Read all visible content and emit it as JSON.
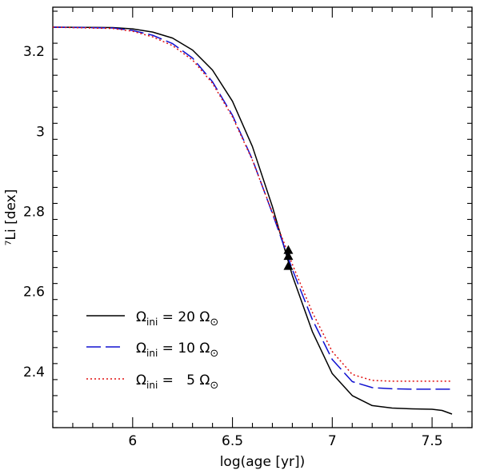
{
  "chart_data": {
    "type": "line",
    "xlabel": "log(age [yr])",
    "ylabel": "⁷Li [dex]",
    "xlim": [
      5.6,
      7.7
    ],
    "ylim": [
      2.26,
      3.31
    ],
    "xticks": [
      6,
      6.5,
      7,
      7.5
    ],
    "yticks": [
      2.4,
      2.6,
      2.8,
      3,
      3.2
    ],
    "x_tick_labels": [
      "6",
      "6.5",
      "7",
      "7.5"
    ],
    "y_tick_labels": [
      "2.4",
      "2.6",
      "2.8",
      "3",
      "3.2"
    ],
    "legend_position": "lower-left",
    "series": [
      {
        "name": "Ωini = 20 Ω⊙",
        "legend": {
          "symbol": "Ω",
          "sub": "ini",
          "eq": "=",
          "num": "20",
          "unit": "Ω",
          "unit_sub": "⊙"
        },
        "color": "#000000",
        "dash": "",
        "x": [
          5.6,
          5.9,
          6.0,
          6.1,
          6.2,
          6.3,
          6.4,
          6.5,
          6.6,
          6.7,
          6.8,
          6.9,
          7.0,
          7.1,
          7.2,
          7.3,
          7.4,
          7.5,
          7.55,
          7.6
        ],
        "y": [
          3.26,
          3.259,
          3.256,
          3.248,
          3.233,
          3.203,
          3.153,
          3.075,
          2.962,
          2.812,
          2.64,
          2.5,
          2.395,
          2.34,
          2.315,
          2.309,
          2.307,
          2.306,
          2.303,
          2.294
        ]
      },
      {
        "name": "Ωini = 10 Ω⊙",
        "legend": {
          "symbol": "Ω",
          "sub": "ini",
          "eq": "=",
          "num": "10",
          "unit": "Ω",
          "unit_sub": "⊙"
        },
        "color": "#1010d0",
        "dash": "18 6",
        "x": [
          5.6,
          5.9,
          6.0,
          6.1,
          6.2,
          6.3,
          6.4,
          6.5,
          6.6,
          6.7,
          6.8,
          6.9,
          7.0,
          7.1,
          7.2,
          7.3,
          7.4,
          7.5,
          7.6
        ],
        "y": [
          3.26,
          3.258,
          3.252,
          3.24,
          3.219,
          3.183,
          3.124,
          3.04,
          2.93,
          2.795,
          2.655,
          2.53,
          2.43,
          2.375,
          2.36,
          2.357,
          2.356,
          2.356,
          2.356
        ]
      },
      {
        "name": "Ωini = 5 Ω⊙",
        "legend": {
          "symbol": "Ω",
          "sub": "ini",
          "eq": "=",
          "num": "5",
          "unit": "Ω",
          "unit_sub": "⊙"
        },
        "color": "#e01010",
        "dash": "2 3",
        "x": [
          5.6,
          5.9,
          6.0,
          6.1,
          6.2,
          6.3,
          6.4,
          6.5,
          6.6,
          6.7,
          6.8,
          6.9,
          7.0,
          7.1,
          7.2,
          7.3,
          7.4,
          7.5,
          7.6
        ],
        "y": [
          3.26,
          3.257,
          3.25,
          3.236,
          3.214,
          3.178,
          3.12,
          3.036,
          2.928,
          2.797,
          2.668,
          2.548,
          2.45,
          2.393,
          2.378,
          2.376,
          2.376,
          2.376,
          2.376
        ]
      }
    ],
    "markers": {
      "symbol": "triangle",
      "color": "#000000",
      "points": [
        {
          "x": 6.78,
          "y": 2.705
        },
        {
          "x": 6.78,
          "y": 2.69
        },
        {
          "x": 6.78,
          "y": 2.665
        }
      ]
    }
  }
}
